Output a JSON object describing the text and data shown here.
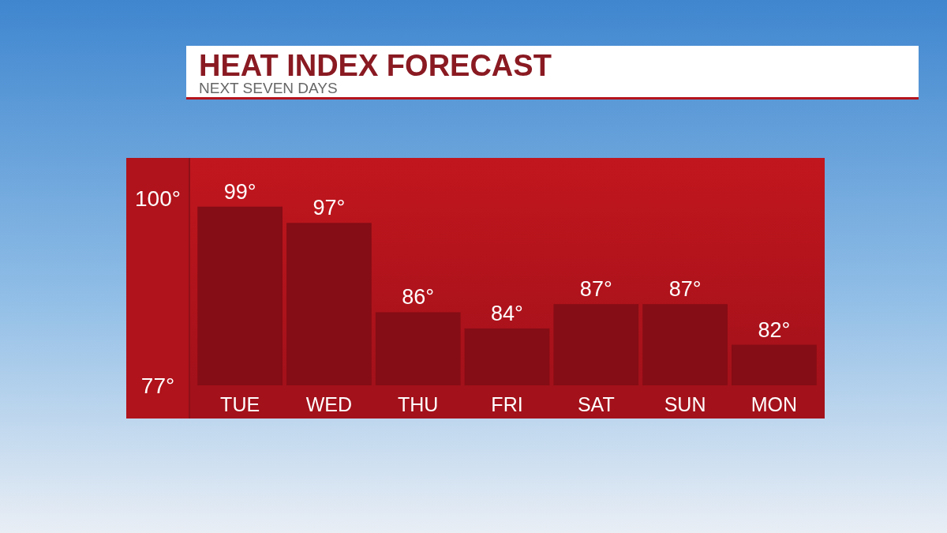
{
  "chart_data": {
    "type": "bar",
    "title": "HEAT INDEX FORECAST",
    "subtitle": "NEXT SEVEN DAYS",
    "categories": [
      "TUE",
      "WED",
      "THU",
      "FRI",
      "SAT",
      "SUN",
      "MON"
    ],
    "values": [
      99,
      97,
      86,
      84,
      87,
      87,
      82
    ],
    "value_labels": [
      "99°",
      "97°",
      "86°",
      "84°",
      "87°",
      "87°",
      "82°"
    ],
    "color": "#850d15",
    "ylim": [
      77,
      105
    ],
    "yticks": [
      {
        "value": 77,
        "label": "77°"
      },
      {
        "value": 100,
        "label": "100°"
      }
    ]
  }
}
